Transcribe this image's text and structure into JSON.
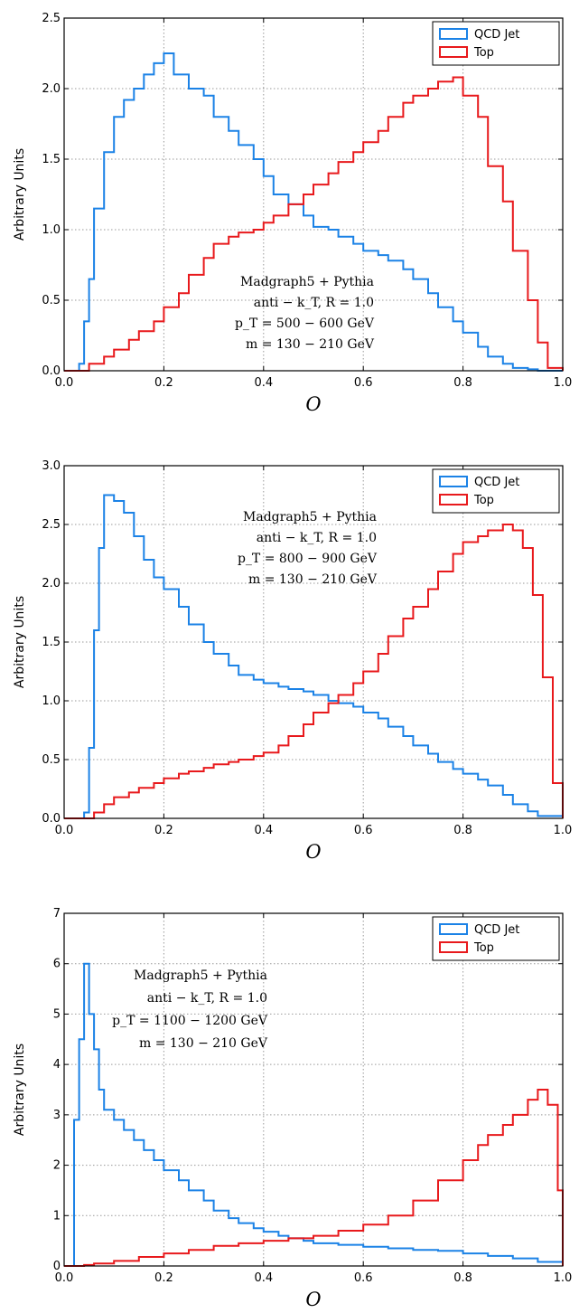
{
  "colors": {
    "qcd": "#1b82e6",
    "top": "#e8191c",
    "grid": "#9a9a9a",
    "axes": "#000000"
  },
  "chart_data": [
    {
      "type": "line",
      "step": true,
      "xlabel": "O",
      "ylabel": "Arbitrary Units",
      "xlim": [
        0.0,
        1.0
      ],
      "ylim": [
        0.0,
        2.5
      ],
      "xticks": [
        "0.0",
        "0.2",
        "0.4",
        "0.6",
        "0.8",
        "1.0"
      ],
      "yticks": [
        "0.0",
        "0.5",
        "1.0",
        "1.5",
        "2.0",
        "2.5"
      ],
      "grid": true,
      "legend": "top-right",
      "annotation": [
        "Madgraph5 + Pythia",
        "anti − k_T, R = 1.0",
        "p_T = 500 − 600 GeV",
        "m = 130 − 210 GeV"
      ],
      "series": [
        {
          "name": "QCD Jet",
          "x": [
            0.0,
            0.03,
            0.04,
            0.05,
            0.06,
            0.08,
            0.1,
            0.12,
            0.14,
            0.16,
            0.18,
            0.2,
            0.22,
            0.25,
            0.28,
            0.3,
            0.33,
            0.35,
            0.38,
            0.4,
            0.42,
            0.45,
            0.48,
            0.5,
            0.53,
            0.55,
            0.58,
            0.6,
            0.63,
            0.65,
            0.68,
            0.7,
            0.73,
            0.75,
            0.78,
            0.8,
            0.83,
            0.85,
            0.88,
            0.9,
            0.93,
            0.95,
            1.0
          ],
          "y": [
            0.0,
            0.05,
            0.35,
            0.65,
            1.15,
            1.55,
            1.8,
            1.92,
            2.0,
            2.1,
            2.18,
            2.25,
            2.1,
            2.0,
            1.95,
            1.8,
            1.7,
            1.6,
            1.5,
            1.38,
            1.25,
            1.18,
            1.1,
            1.02,
            1.0,
            0.95,
            0.9,
            0.85,
            0.82,
            0.78,
            0.72,
            0.65,
            0.55,
            0.45,
            0.35,
            0.27,
            0.17,
            0.1,
            0.05,
            0.02,
            0.01,
            0.0,
            0.0
          ]
        },
        {
          "name": "Top",
          "x": [
            0.0,
            0.03,
            0.05,
            0.08,
            0.1,
            0.13,
            0.15,
            0.18,
            0.2,
            0.23,
            0.25,
            0.28,
            0.3,
            0.33,
            0.35,
            0.38,
            0.4,
            0.42,
            0.45,
            0.48,
            0.5,
            0.53,
            0.55,
            0.58,
            0.6,
            0.63,
            0.65,
            0.68,
            0.7,
            0.73,
            0.75,
            0.78,
            0.8,
            0.83,
            0.85,
            0.88,
            0.9,
            0.93,
            0.95,
            0.97,
            1.0
          ],
          "y": [
            0.0,
            0.0,
            0.05,
            0.1,
            0.15,
            0.22,
            0.28,
            0.35,
            0.45,
            0.55,
            0.68,
            0.8,
            0.9,
            0.95,
            0.98,
            1.0,
            1.05,
            1.1,
            1.18,
            1.25,
            1.32,
            1.4,
            1.48,
            1.55,
            1.62,
            1.7,
            1.8,
            1.9,
            1.95,
            2.0,
            2.05,
            2.08,
            1.95,
            1.8,
            1.45,
            1.2,
            0.85,
            0.5,
            0.2,
            0.02,
            0.0
          ]
        }
      ]
    },
    {
      "type": "line",
      "step": true,
      "xlabel": "O",
      "ylabel": "Arbitrary Units",
      "xlim": [
        0.0,
        1.0
      ],
      "ylim": [
        0.0,
        3.0
      ],
      "xticks": [
        "0.0",
        "0.2",
        "0.4",
        "0.6",
        "0.8",
        "1.0"
      ],
      "yticks": [
        "0.0",
        "0.5",
        "1.0",
        "1.5",
        "2.0",
        "2.5",
        "3.0"
      ],
      "grid": true,
      "legend": "top-right",
      "annotation": [
        "Madgraph5 + Pythia",
        "anti − k_T, R = 1.0",
        "p_T = 800 − 900 GeV",
        "m = 130 − 210 GeV"
      ],
      "series": [
        {
          "name": "QCD Jet",
          "x": [
            0.0,
            0.04,
            0.05,
            0.06,
            0.07,
            0.08,
            0.1,
            0.12,
            0.14,
            0.16,
            0.18,
            0.2,
            0.23,
            0.25,
            0.28,
            0.3,
            0.33,
            0.35,
            0.38,
            0.4,
            0.43,
            0.45,
            0.48,
            0.5,
            0.53,
            0.55,
            0.58,
            0.6,
            0.63,
            0.65,
            0.68,
            0.7,
            0.73,
            0.75,
            0.78,
            0.8,
            0.83,
            0.85,
            0.88,
            0.9,
            0.93,
            0.95,
            1.0
          ],
          "y": [
            0.0,
            0.05,
            0.6,
            1.6,
            2.3,
            2.75,
            2.7,
            2.6,
            2.4,
            2.2,
            2.05,
            1.95,
            1.8,
            1.65,
            1.5,
            1.4,
            1.3,
            1.22,
            1.18,
            1.15,
            1.12,
            1.1,
            1.08,
            1.05,
            1.0,
            0.98,
            0.95,
            0.9,
            0.85,
            0.78,
            0.7,
            0.62,
            0.55,
            0.48,
            0.42,
            0.38,
            0.33,
            0.28,
            0.2,
            0.12,
            0.06,
            0.02,
            0.0
          ]
        },
        {
          "name": "Top",
          "x": [
            0.0,
            0.04,
            0.06,
            0.08,
            0.1,
            0.13,
            0.15,
            0.18,
            0.2,
            0.23,
            0.25,
            0.28,
            0.3,
            0.33,
            0.35,
            0.38,
            0.4,
            0.43,
            0.45,
            0.48,
            0.5,
            0.53,
            0.55,
            0.58,
            0.6,
            0.63,
            0.65,
            0.68,
            0.7,
            0.73,
            0.75,
            0.78,
            0.8,
            0.83,
            0.85,
            0.88,
            0.9,
            0.92,
            0.94,
            0.96,
            0.98,
            1.0
          ],
          "y": [
            0.0,
            0.0,
            0.05,
            0.12,
            0.18,
            0.22,
            0.26,
            0.3,
            0.34,
            0.38,
            0.4,
            0.43,
            0.46,
            0.48,
            0.5,
            0.53,
            0.56,
            0.62,
            0.7,
            0.8,
            0.9,
            0.98,
            1.05,
            1.15,
            1.25,
            1.4,
            1.55,
            1.7,
            1.8,
            1.95,
            2.1,
            2.25,
            2.35,
            2.4,
            2.45,
            2.5,
            2.45,
            2.3,
            1.9,
            1.2,
            0.3,
            0.0
          ]
        }
      ]
    },
    {
      "type": "line",
      "step": true,
      "xlabel": "O",
      "ylabel": "Arbitrary Units",
      "xlim": [
        0.0,
        1.0
      ],
      "ylim": [
        0,
        7
      ],
      "xticks": [
        "0.0",
        "0.2",
        "0.4",
        "0.6",
        "0.8",
        "1.0"
      ],
      "yticks": [
        "0",
        "1",
        "2",
        "3",
        "4",
        "5",
        "6",
        "7"
      ],
      "grid": true,
      "legend": "top-right",
      "annotation": [
        "Madgraph5 + Pythia",
        "anti − k_T, R = 1.0",
        "p_T = 1100 − 1200 GeV",
        "m = 130 − 210 GeV"
      ],
      "series": [
        {
          "name": "QCD Jet",
          "x": [
            0.0,
            0.02,
            0.03,
            0.04,
            0.05,
            0.06,
            0.07,
            0.08,
            0.1,
            0.12,
            0.14,
            0.16,
            0.18,
            0.2,
            0.23,
            0.25,
            0.28,
            0.3,
            0.33,
            0.35,
            0.38,
            0.4,
            0.43,
            0.45,
            0.48,
            0.5,
            0.55,
            0.6,
            0.65,
            0.7,
            0.75,
            0.8,
            0.85,
            0.9,
            0.95,
            1.0
          ],
          "y": [
            0.0,
            2.9,
            4.5,
            6.0,
            5.0,
            4.3,
            3.5,
            3.1,
            2.9,
            2.7,
            2.5,
            2.3,
            2.1,
            1.9,
            1.7,
            1.5,
            1.3,
            1.1,
            0.95,
            0.85,
            0.75,
            0.68,
            0.6,
            0.55,
            0.5,
            0.45,
            0.42,
            0.38,
            0.35,
            0.32,
            0.3,
            0.25,
            0.2,
            0.15,
            0.08,
            0.0
          ]
        },
        {
          "name": "Top",
          "x": [
            0.0,
            0.04,
            0.06,
            0.1,
            0.15,
            0.2,
            0.25,
            0.3,
            0.35,
            0.4,
            0.45,
            0.5,
            0.55,
            0.6,
            0.65,
            0.7,
            0.75,
            0.8,
            0.83,
            0.85,
            0.88,
            0.9,
            0.93,
            0.95,
            0.97,
            0.99,
            1.0
          ],
          "y": [
            0.0,
            0.02,
            0.05,
            0.1,
            0.18,
            0.25,
            0.32,
            0.4,
            0.45,
            0.5,
            0.55,
            0.6,
            0.7,
            0.82,
            1.0,
            1.3,
            1.7,
            2.1,
            2.4,
            2.6,
            2.8,
            3.0,
            3.3,
            3.5,
            3.2,
            1.5,
            0.0
          ]
        }
      ]
    }
  ]
}
